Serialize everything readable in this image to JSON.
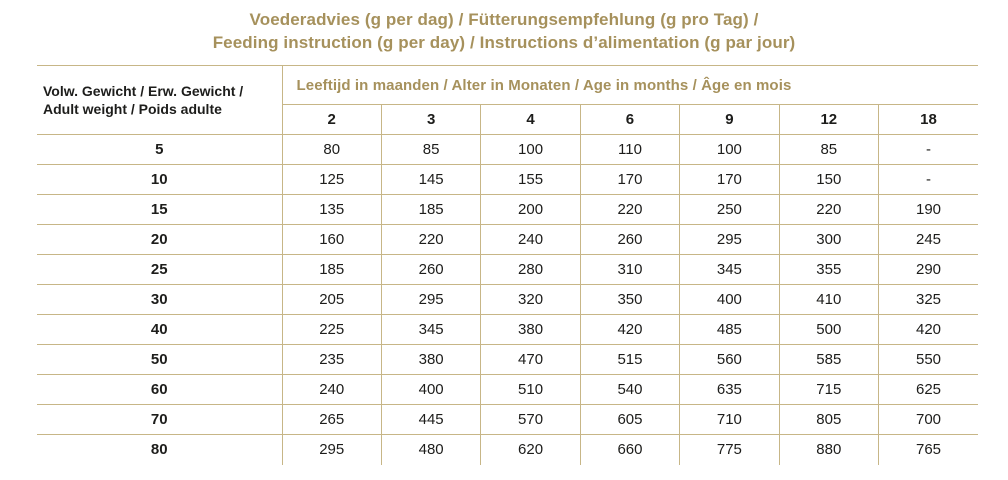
{
  "title": {
    "line1": "Voederadvies (g per dag) / Fütterungsempfehlung (g pro Tag) /",
    "line2": "Feeding instruction (g per day) / Instructions d’alimentation (g par jour)"
  },
  "colors": {
    "accent_gold_text": "#A6915C",
    "grid_line": "#C7B687",
    "body_text": "#1d1d1b",
    "background": "#ffffff"
  },
  "table": {
    "row_header_line1": "Volw. Gewicht / Erw. Gewicht /",
    "row_header_line2": "Adult weight / Poids adulte",
    "age_header": "Leeftijd in maanden / Alter in Monaten / Age in months / Âge en mois",
    "months": [
      "2",
      "3",
      "4",
      "6",
      "9",
      "12",
      "18"
    ],
    "rows": [
      {
        "weight": "5",
        "values": [
          "80",
          "85",
          "100",
          "110",
          "100",
          "85",
          "-"
        ]
      },
      {
        "weight": "10",
        "values": [
          "125",
          "145",
          "155",
          "170",
          "170",
          "150",
          "-"
        ]
      },
      {
        "weight": "15",
        "values": [
          "135",
          "185",
          "200",
          "220",
          "250",
          "220",
          "190"
        ]
      },
      {
        "weight": "20",
        "values": [
          "160",
          "220",
          "240",
          "260",
          "295",
          "300",
          "245"
        ]
      },
      {
        "weight": "25",
        "values": [
          "185",
          "260",
          "280",
          "310",
          "345",
          "355",
          "290"
        ]
      },
      {
        "weight": "30",
        "values": [
          "205",
          "295",
          "320",
          "350",
          "400",
          "410",
          "325"
        ]
      },
      {
        "weight": "40",
        "values": [
          "225",
          "345",
          "380",
          "420",
          "485",
          "500",
          "420"
        ]
      },
      {
        "weight": "50",
        "values": [
          "235",
          "380",
          "470",
          "515",
          "560",
          "585",
          "550"
        ]
      },
      {
        "weight": "60",
        "values": [
          "240",
          "400",
          "510",
          "540",
          "635",
          "715",
          "625"
        ]
      },
      {
        "weight": "70",
        "values": [
          "265",
          "445",
          "570",
          "605",
          "710",
          "805",
          "700"
        ]
      },
      {
        "weight": "80",
        "values": [
          "295",
          "480",
          "620",
          "660",
          "775",
          "880",
          "765"
        ]
      }
    ]
  }
}
